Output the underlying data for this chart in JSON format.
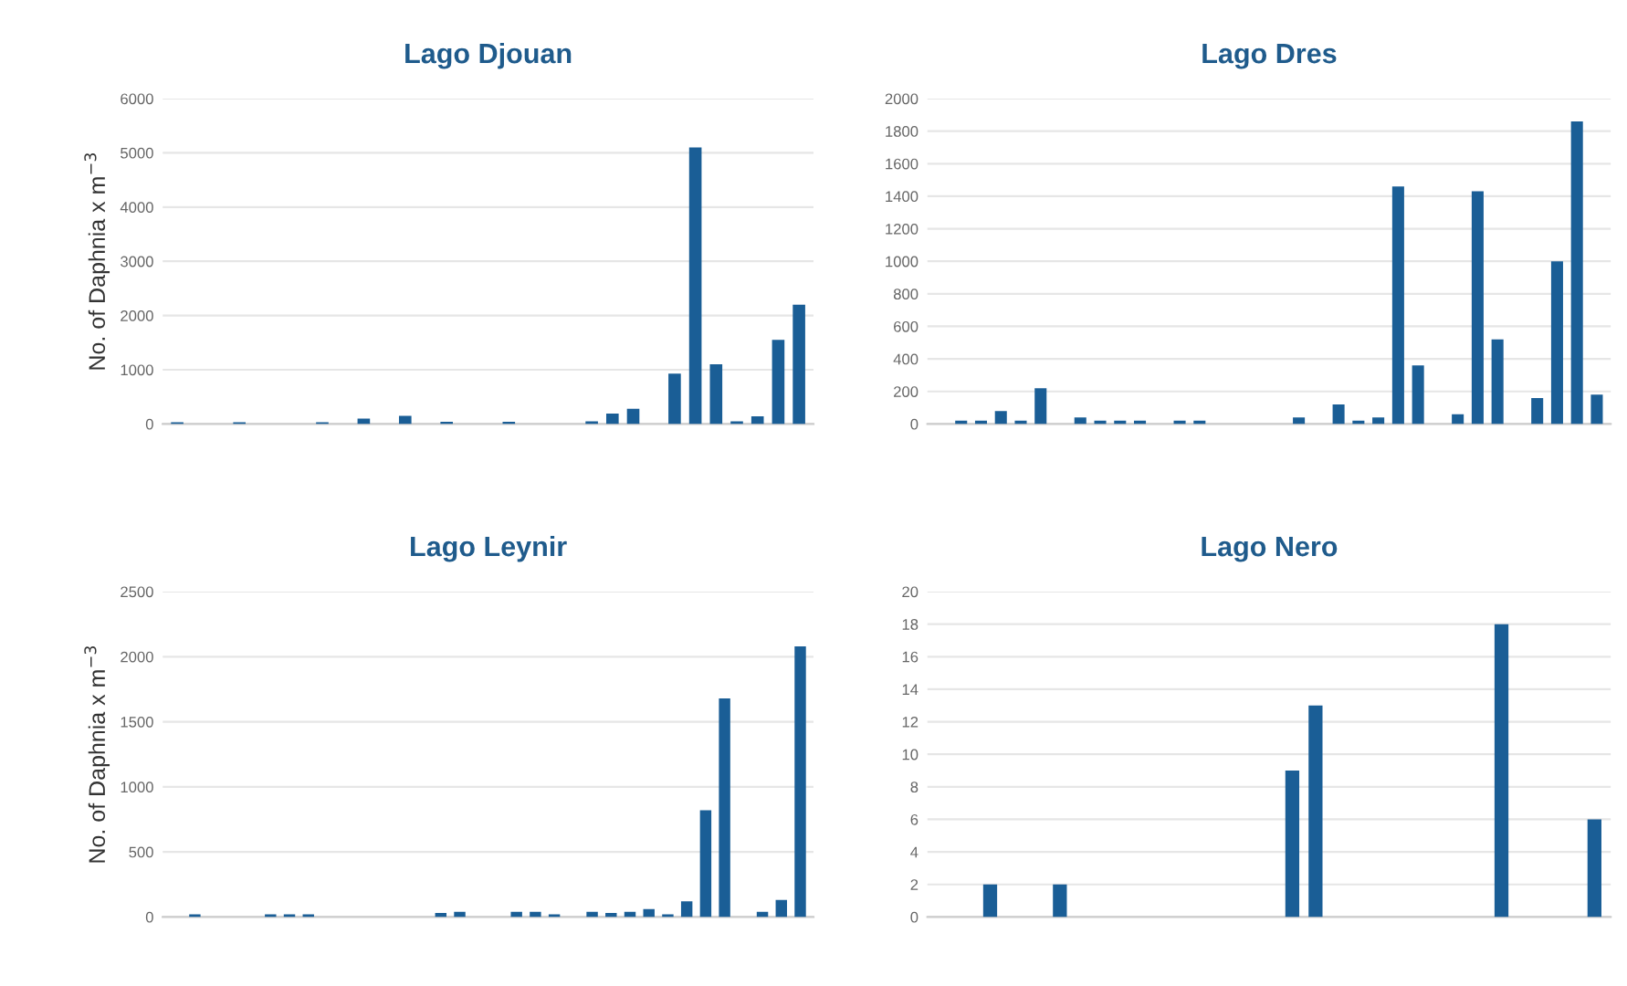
{
  "chart_data": [
    {
      "type": "bar",
      "title": "Lago Djouan",
      "ylabel": "No. of Daphnia x m$^{−3}$",
      "color": "#1a5e96",
      "categories": [
        null,
        null,
        null,
        null,
        null,
        null,
        null,
        null,
        null,
        null,
        null,
        null,
        null,
        null,
        null,
        null,
        null,
        null,
        null,
        null,
        null,
        null,
        null,
        null,
        null,
        null,
        null,
        null,
        null,
        null,
        null
      ],
      "values": [
        30,
        0,
        0,
        30,
        0,
        0,
        0,
        30,
        0,
        100,
        0,
        150,
        0,
        40,
        0,
        0,
        40,
        0,
        0,
        0,
        50,
        190,
        280,
        0,
        930,
        5100,
        1100,
        50,
        140,
        1550,
        2200
      ],
      "ylim": [
        0,
        6000
      ],
      "yticks": [
        0,
        1000,
        2000,
        3000,
        4000,
        5000,
        6000
      ],
      "grid": "y",
      "tick_labels": "y"
    },
    {
      "type": "bar",
      "title": "Lago Dres",
      "color": "#1a5e96",
      "categories": [
        null,
        null,
        null,
        null,
        null,
        null,
        null,
        null,
        null,
        null,
        null,
        null,
        null,
        null,
        null,
        null,
        null,
        null,
        null,
        null,
        null,
        null,
        null,
        null,
        null,
        null,
        null,
        null,
        null,
        null,
        null,
        null,
        null,
        null
      ],
      "values": [
        0,
        20,
        20,
        80,
        20,
        220,
        0,
        40,
        20,
        20,
        20,
        0,
        20,
        20,
        0,
        0,
        0,
        0,
        40,
        0,
        120,
        20,
        40,
        1460,
        360,
        0,
        60,
        1430,
        520,
        0,
        160,
        1000,
        1860,
        180
      ],
      "ylim": [
        0,
        2000
      ],
      "yticks": [
        0,
        200,
        400,
        600,
        800,
        1000,
        1200,
        1400,
        1600,
        1800,
        2000
      ],
      "grid": "y",
      "tick_labels": "y"
    },
    {
      "type": "bar",
      "title": "Lago Leynir",
      "ylabel": "No. of Daphnia x m$^{−3}$",
      "color": "#1a5e96",
      "categories": [
        null,
        null,
        null,
        null,
        null,
        null,
        null,
        null,
        null,
        null,
        null,
        null,
        null,
        null,
        null,
        null,
        null,
        null,
        null,
        null,
        null,
        null,
        null,
        null,
        null,
        null,
        null,
        null,
        null,
        null,
        null,
        null,
        null,
        null
      ],
      "values": [
        0,
        20,
        0,
        0,
        0,
        20,
        20,
        20,
        0,
        0,
        0,
        0,
        0,
        0,
        30,
        40,
        0,
        0,
        40,
        40,
        20,
        0,
        40,
        30,
        40,
        60,
        20,
        120,
        820,
        1680,
        0,
        40,
        130,
        2080
      ],
      "ylim": [
        0,
        2500
      ],
      "yticks": [
        0,
        500,
        1000,
        1500,
        2000,
        2500
      ],
      "grid": "y",
      "tick_labels": "y"
    },
    {
      "type": "bar",
      "title": "Lago Nero",
      "color": "#1a5e96",
      "categories": [
        null,
        null,
        null,
        null,
        null,
        null,
        null,
        null,
        null,
        null,
        null,
        null,
        null,
        null,
        null,
        null,
        null,
        null,
        null,
        null,
        null,
        null,
        null,
        null,
        null,
        null,
        null,
        null,
        null
      ],
      "values": [
        0,
        0,
        2,
        0,
        0,
        2,
        0,
        0,
        0,
        0,
        0,
        0,
        0,
        0,
        0,
        9,
        13,
        0,
        0,
        0,
        0,
        0,
        0,
        0,
        18,
        0,
        0,
        0,
        6
      ],
      "ylim": [
        0,
        20
      ],
      "yticks": [
        0,
        2,
        4,
        6,
        8,
        10,
        12,
        14,
        16,
        18,
        20
      ],
      "grid": "y",
      "tick_labels": "y"
    }
  ]
}
